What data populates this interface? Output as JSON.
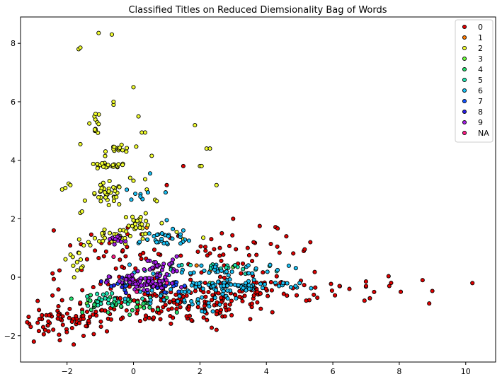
{
  "chart_data": {
    "type": "scatter",
    "title": "Classified Titles on Reduced Diemsionality Bag of Words",
    "xlabel": "",
    "ylabel": "",
    "xlim": [
      -3.4,
      10.9
    ],
    "ylim": [
      -2.9,
      8.9
    ],
    "xticks": [
      -2,
      0,
      2,
      4,
      6,
      8,
      10
    ],
    "yticks": [
      -2,
      0,
      2,
      4,
      6,
      8
    ],
    "grid": false,
    "legend_position": "top-right",
    "series": [
      {
        "name": "0",
        "color": "#e00000",
        "clusters": [
          {
            "cx": -2.0,
            "cy": -1.5,
            "sx": 0.7,
            "sy": 0.25,
            "n": 70
          },
          {
            "cx": 1.0,
            "cy": -1.0,
            "sx": 1.5,
            "sy": 0.35,
            "n": 110
          },
          {
            "cx": 4.0,
            "cy": -0.4,
            "sx": 1.8,
            "sy": 0.25,
            "n": 70
          },
          {
            "cx": 3.2,
            "cy": 0.9,
            "sx": 1.2,
            "sy": 0.35,
            "n": 40
          },
          {
            "cx": -0.5,
            "cy": 0.3,
            "sx": 1.2,
            "sy": 0.6,
            "n": 50
          },
          {
            "cx": 2.6,
            "cy": -0.6,
            "sx": 1.0,
            "sy": 0.5,
            "n": 40
          }
        ],
        "points": [
          [
            -3.0,
            -2.2
          ],
          [
            -2.7,
            -1.95
          ],
          [
            -2.4,
            1.6
          ],
          [
            -1.8,
            -2.3
          ],
          [
            5.2,
            -0.8
          ],
          [
            6.2,
            -0.3
          ],
          [
            7.7,
            -0.3
          ],
          [
            8.7,
            -0.1
          ],
          [
            10.2,
            -0.2
          ],
          [
            4.6,
            1.4
          ],
          [
            3.0,
            2.0
          ],
          [
            2.6,
            1.0
          ],
          [
            3.8,
            1.75
          ],
          [
            1.0,
            3.15
          ],
          [
            1.5,
            3.8
          ],
          [
            2.5,
            -1.8
          ],
          [
            0.2,
            -1.5
          ],
          [
            -0.8,
            -1.85
          ],
          [
            6.5,
            -0.4
          ],
          [
            7.0,
            -0.3
          ]
        ]
      },
      {
        "name": "1",
        "color": "#ff7b00",
        "clusters": [],
        "points": [
          [
            2.3,
            0.2
          ],
          [
            -0.9,
            1.5
          ],
          [
            0.4,
            1.7
          ],
          [
            1.9,
            0.4
          ]
        ]
      },
      {
        "name": "2",
        "color": "#f2ff2e",
        "clusters": [
          {
            "cx": -0.8,
            "cy": 3.8,
            "sx": 0.3,
            "sy": 0.05,
            "n": 25
          },
          {
            "cx": -0.8,
            "cy": 2.8,
            "sx": 0.25,
            "sy": 0.2,
            "n": 35
          },
          {
            "cx": -0.4,
            "cy": 4.4,
            "sx": 0.2,
            "sy": 0.1,
            "n": 15
          },
          {
            "cx": 0.2,
            "cy": 1.9,
            "sx": 0.15,
            "sy": 0.15,
            "n": 20
          },
          {
            "cx": -1.15,
            "cy": 5.3,
            "sx": 0.08,
            "sy": 0.2,
            "n": 12
          },
          {
            "cx": -0.5,
            "cy": 1.4,
            "sx": 0.6,
            "sy": 0.15,
            "n": 30
          },
          {
            "cx": -1.7,
            "cy": 0.6,
            "sx": 0.15,
            "sy": 0.15,
            "n": 12
          }
        ],
        "points": [
          [
            -1.05,
            8.35
          ],
          [
            -0.65,
            8.3
          ],
          [
            -1.65,
            7.8
          ],
          [
            -1.6,
            7.85
          ],
          [
            -0.6,
            5.9
          ],
          [
            -0.6,
            6.0
          ],
          [
            0.0,
            6.5
          ],
          [
            0.15,
            5.5
          ],
          [
            0.25,
            4.95
          ],
          [
            0.35,
            4.95
          ],
          [
            -1.6,
            4.55
          ],
          [
            -2.05,
            3.05
          ],
          [
            -2.15,
            3.0
          ],
          [
            -1.95,
            3.2
          ],
          [
            -1.9,
            3.15
          ],
          [
            -1.6,
            2.2
          ],
          [
            -1.55,
            2.25
          ],
          [
            1.85,
            5.2
          ],
          [
            2.2,
            4.4
          ],
          [
            2.3,
            4.4
          ],
          [
            0.55,
            4.15
          ],
          [
            2.0,
            3.8
          ],
          [
            2.05,
            3.8
          ],
          [
            2.5,
            3.15
          ],
          [
            0.65,
            2.65
          ],
          [
            0.7,
            2.6
          ],
          [
            0.85,
            1.85
          ],
          [
            1.5,
            1.3
          ],
          [
            1.3,
            1.55
          ],
          [
            2.1,
            1.35
          ],
          [
            0.0,
            3.3
          ],
          [
            -0.1,
            3.4
          ],
          [
            0.35,
            3.35
          ],
          [
            0.4,
            3.0
          ]
        ]
      },
      {
        "name": "3",
        "color": "#6cff3c",
        "clusters": [],
        "points": [
          [
            -1.0,
            -0.85
          ],
          [
            -0.6,
            -1.0
          ],
          [
            0.2,
            -1.0
          ],
          [
            3.0,
            0.35
          ],
          [
            2.3,
            -0.2
          ],
          [
            -1.4,
            -0.9
          ]
        ]
      },
      {
        "name": "4",
        "color": "#23e16c",
        "clusters": [
          {
            "cx": -0.6,
            "cy": -0.95,
            "sx": 0.8,
            "sy": 0.15,
            "n": 35
          }
        ],
        "points": [
          [
            -1.3,
            -0.8
          ],
          [
            0.3,
            -0.9
          ],
          [
            1.0,
            -0.7
          ]
        ]
      },
      {
        "name": "5",
        "color": "#1fe6b2",
        "clusters": [
          {
            "cx": -0.9,
            "cy": -0.8,
            "sx": 0.5,
            "sy": 0.15,
            "n": 25
          },
          {
            "cx": 2.8,
            "cy": 0.3,
            "sx": 0.8,
            "sy": 0.1,
            "n": 20
          }
        ],
        "points": [
          [
            0.5,
            -0.7
          ]
        ]
      },
      {
        "name": "6",
        "color": "#19bff3",
        "clusters": [
          {
            "cx": 3.0,
            "cy": -0.3,
            "sx": 1.1,
            "sy": 0.12,
            "n": 80
          },
          {
            "cx": 2.5,
            "cy": 0.3,
            "sx": 1.0,
            "sy": 0.12,
            "n": 40
          },
          {
            "cx": 0.8,
            "cy": 1.3,
            "sx": 0.6,
            "sy": 0.15,
            "n": 30
          },
          {
            "cx": 1.2,
            "cy": -0.8,
            "sx": 0.8,
            "sy": 0.2,
            "n": 30
          },
          {
            "cx": 0.3,
            "cy": 2.8,
            "sx": 0.3,
            "sy": 0.1,
            "n": 8
          }
        ],
        "points": [
          [
            0.5,
            3.55
          ],
          [
            1.0,
            1.95
          ],
          [
            1.5,
            1.6
          ],
          [
            5.0,
            -0.2
          ],
          [
            4.5,
            -0.2
          ]
        ]
      },
      {
        "name": "7",
        "color": "#1454ff",
        "clusters": [
          {
            "cx": 0.5,
            "cy": -0.3,
            "sx": 0.6,
            "sy": 0.15,
            "n": 20
          }
        ],
        "points": [
          [
            -0.3,
            -0.2
          ],
          [
            1.2,
            -0.3
          ]
        ]
      },
      {
        "name": "8",
        "color": "#2a1ce8",
        "clusters": [
          {
            "cx": 0.0,
            "cy": -0.2,
            "sx": 0.5,
            "sy": 0.15,
            "n": 15
          }
        ],
        "points": [
          [
            -0.6,
            1.3
          ]
        ]
      },
      {
        "name": "9",
        "color": "#a21de7",
        "clusters": [
          {
            "cx": 0.3,
            "cy": -0.2,
            "sx": 0.5,
            "sy": 0.15,
            "n": 70
          },
          {
            "cx": 0.8,
            "cy": 0.4,
            "sx": 0.3,
            "sy": 0.15,
            "n": 25
          },
          {
            "cx": -0.5,
            "cy": 1.3,
            "sx": 0.12,
            "sy": 0.08,
            "n": 12
          }
        ],
        "points": []
      },
      {
        "name": "NA",
        "color": "#ff1a84",
        "clusters": [],
        "points": [
          [
            -0.6,
            0.7
          ],
          [
            0.1,
            -0.5
          ],
          [
            1.0,
            -0.2
          ]
        ]
      }
    ]
  }
}
